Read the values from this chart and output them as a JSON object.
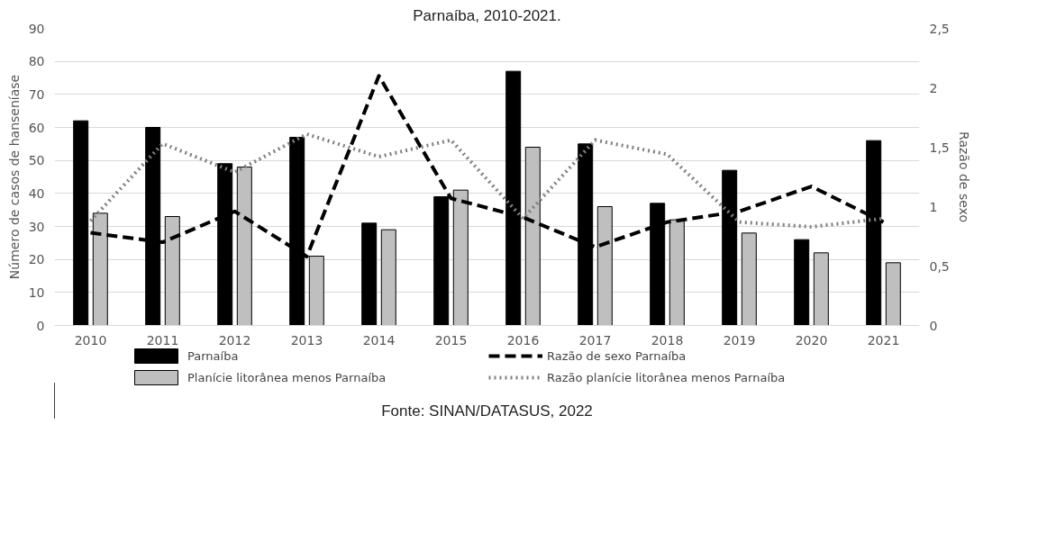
{
  "chart_data": {
    "type": "bar",
    "title": "Parnaíba, 2010-2021.",
    "categories": [
      "2010",
      "2011",
      "2012",
      "2013",
      "2014",
      "2015",
      "2016",
      "2017",
      "2018",
      "2019",
      "2020",
      "2021"
    ],
    "series": [
      {
        "name": "Parnaíba",
        "color": "#000000",
        "values": [
          62,
          60,
          49,
          57,
          31,
          39,
          77,
          55,
          37,
          47,
          26,
          56
        ]
      },
      {
        "name": "Planície litorânea menos Parnaíba",
        "color": "#bfbfbf",
        "values": [
          34,
          33,
          48,
          21,
          29,
          41,
          54,
          36,
          32,
          28,
          22,
          19
        ]
      },
      {
        "name": "Razão de sexo Parnaíba",
        "type": "line",
        "axis": "y2",
        "line_style": "dashed",
        "color": "#000000",
        "values": [
          0.78,
          0.7,
          0.96,
          0.58,
          2.1,
          1.07,
          0.91,
          0.66,
          0.87,
          0.96,
          1.17,
          0.87
        ]
      },
      {
        "name": "Razão planície litorânea menos Parnaíba",
        "type": "line",
        "axis": "y2",
        "line_style": "dotted",
        "color": "#808080",
        "values": [
          0.88,
          1.53,
          1.29,
          1.61,
          1.42,
          1.56,
          0.9,
          1.56,
          1.44,
          0.87,
          0.83,
          0.9
        ]
      }
    ],
    "ylabel": "Número de casos de hanseníase",
    "y2label": "Razão de sexo",
    "ylim": [
      0,
      90
    ],
    "yticks": [
      0,
      10,
      20,
      30,
      40,
      50,
      60,
      70,
      80,
      90
    ],
    "y2lim": [
      0,
      2.5
    ],
    "y2ticks": [
      0,
      {
        "value": 0.5,
        "label": "0,5"
      },
      1,
      {
        "value": 1.5,
        "label": "1,5"
      },
      2,
      {
        "value": 2.5,
        "label": "2,5"
      }
    ],
    "grid": "y",
    "legend": "bottom",
    "annotations": [
      "Fonte: SINAN/DATASUS, 2022"
    ]
  }
}
